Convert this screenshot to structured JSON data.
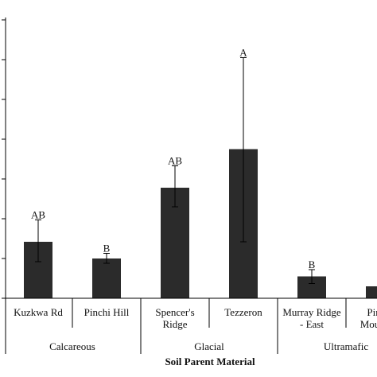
{
  "chart_data": {
    "type": "bar",
    "xlabel": "Soil Parent Material",
    "ylabel": "",
    "ylim": [
      0,
      7
    ],
    "yticks": [
      0,
      1,
      2,
      3,
      4,
      5,
      6,
      7
    ],
    "grid": false,
    "bar_color": "#2b2b2b",
    "categories": [
      "Kuzkwa Rd",
      "Pinchi Hill",
      "Spencer's Ridge",
      "Tezzeron",
      "Murray Ridge - East",
      "Pinchi Mountain"
    ],
    "category_lines": [
      [
        "Kuzkwa Rd"
      ],
      [
        "Pinchi Hill"
      ],
      [
        "Spencer's",
        "Ridge"
      ],
      [
        "Tezzeron"
      ],
      [
        "Murray Ridge",
        "- East"
      ],
      [
        "Pinchi",
        "Mountain"
      ]
    ],
    "values": [
      1.42,
      1.0,
      2.78,
      3.75,
      0.55,
      0.3
    ],
    "error_low": [
      0.92,
      0.88,
      2.3,
      1.42,
      0.37,
      null
    ],
    "error_high": [
      1.97,
      1.13,
      3.33,
      6.05,
      0.72,
      null
    ],
    "letters": [
      "AB",
      "B",
      "AB",
      "A",
      "B",
      ""
    ],
    "groups": [
      {
        "name": "Calcareous",
        "categories": [
          "Kuzkwa Rd",
          "Pinchi Hill"
        ]
      },
      {
        "name": "Glacial",
        "categories": [
          "Spencer's Ridge",
          "Tezzeron"
        ]
      },
      {
        "name": "Ultramafic",
        "categories": [
          "Murray Ridge - East",
          "Pinchi Mountain"
        ]
      }
    ]
  }
}
